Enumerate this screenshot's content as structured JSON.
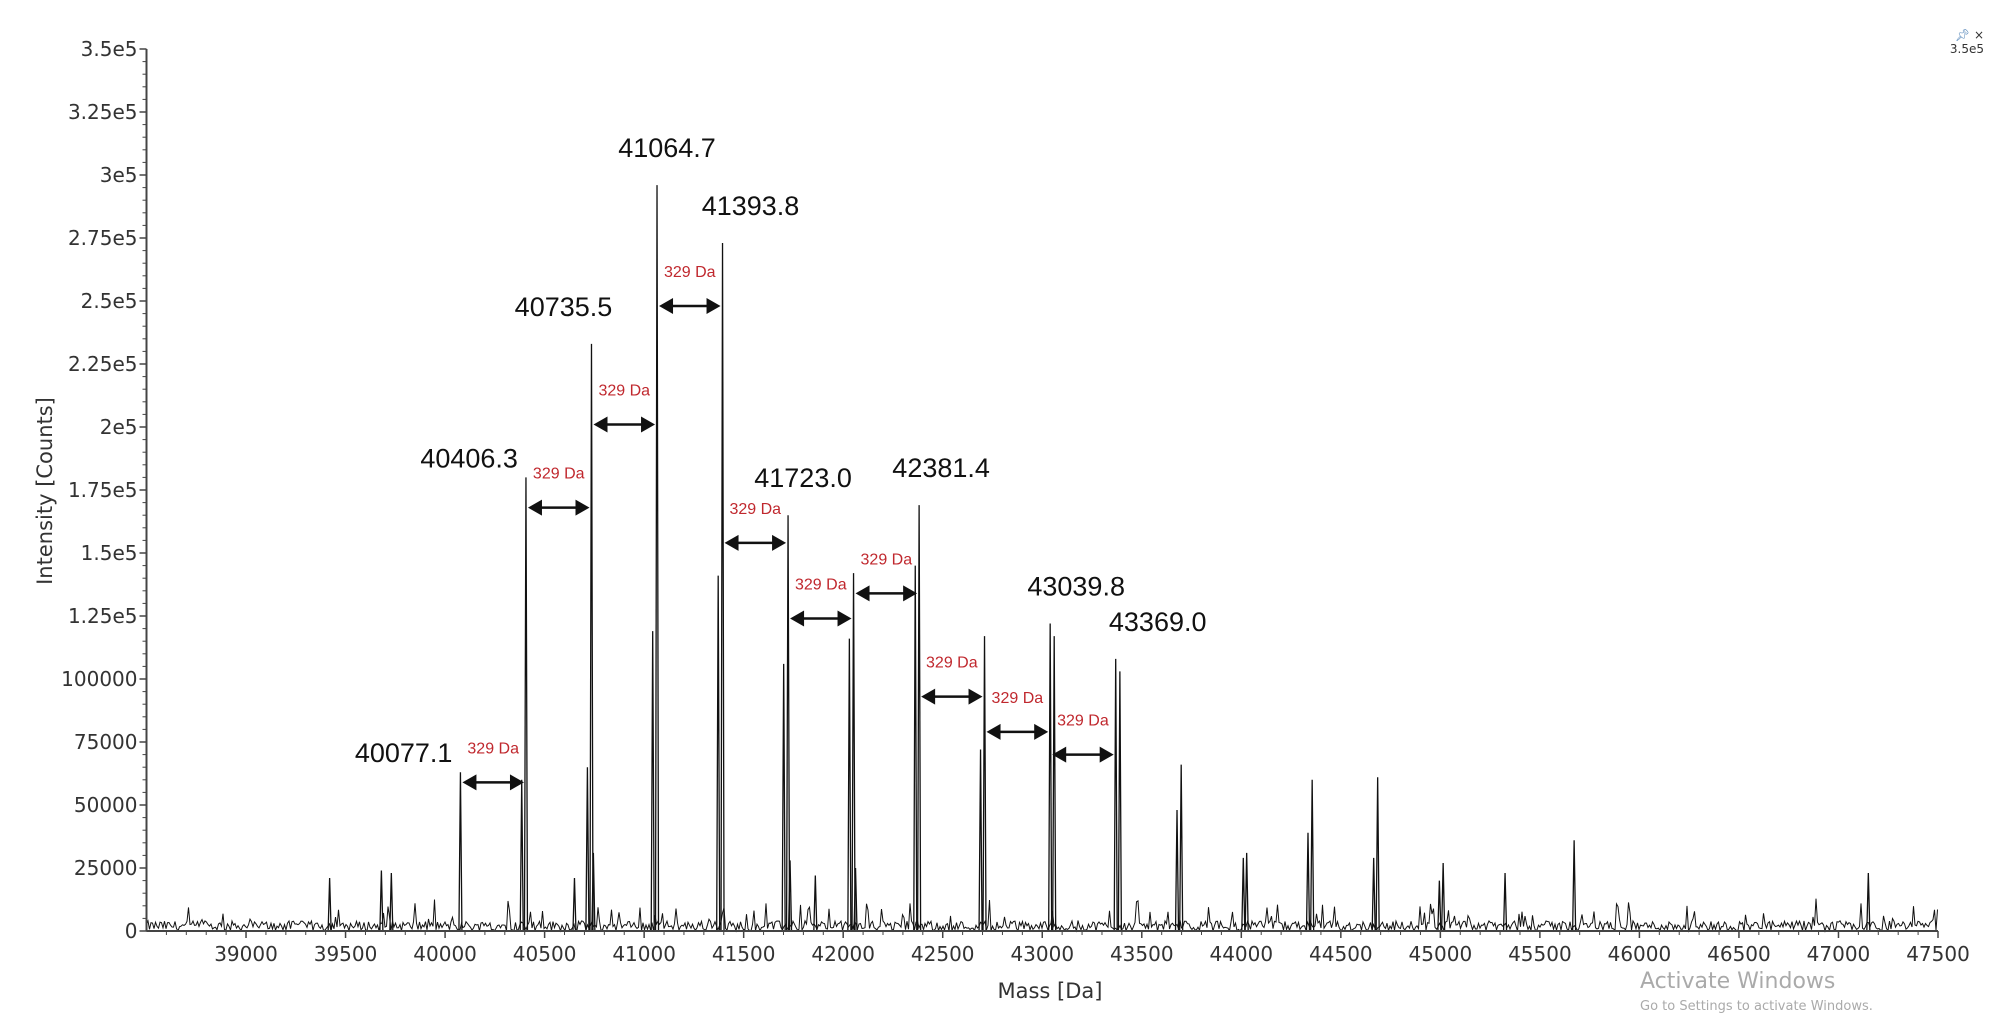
{
  "chart_data": {
    "type": "line",
    "title": "",
    "xlabel": "Mass [Da]",
    "ylabel": "Intensity [Counts]",
    "xlim": [
      38500,
      47500
    ],
    "ylim": [
      0,
      350000
    ],
    "grid": false,
    "x_ticks": [
      "39000",
      "39500",
      "40000",
      "40500",
      "41000",
      "41500",
      "42000",
      "42500",
      "43000",
      "43500",
      "44000",
      "44500",
      "45000",
      "45500",
      "46000",
      "46500",
      "47000",
      "47500"
    ],
    "y_ticks": [
      {
        "value": 0,
        "label": "0"
      },
      {
        "value": 25000,
        "label": "25000"
      },
      {
        "value": 50000,
        "label": "50000"
      },
      {
        "value": 75000,
        "label": "75000"
      },
      {
        "value": 100000,
        "label": "100000"
      },
      {
        "value": 125000,
        "label": "1.25e5"
      },
      {
        "value": 150000,
        "label": "1.5e5"
      },
      {
        "value": 175000,
        "label": "1.75e5"
      },
      {
        "value": 200000,
        "label": "2e5"
      },
      {
        "value": 225000,
        "label": "2.25e5"
      },
      {
        "value": 250000,
        "label": "2.5e5"
      },
      {
        "value": 275000,
        "label": "2.75e5"
      },
      {
        "value": 300000,
        "label": "3e5"
      },
      {
        "value": 325000,
        "label": "3.25e5"
      },
      {
        "value": 350000,
        "label": "3.5e5"
      }
    ],
    "labeled_peaks": [
      {
        "mass": 40077.1,
        "intensity": 63000,
        "label": "40077.1"
      },
      {
        "mass": 40406.3,
        "intensity": 180000,
        "label": "40406.3"
      },
      {
        "mass": 40735.5,
        "intensity": 233000,
        "label": "40735.5"
      },
      {
        "mass": 41064.7,
        "intensity": 296000,
        "label": "41064.7"
      },
      {
        "mass": 41393.8,
        "intensity": 273000,
        "label": "41393.8"
      },
      {
        "mass": 41723.0,
        "intensity": 165000,
        "label": "41723.0"
      },
      {
        "mass": 42381.4,
        "intensity": 169000,
        "label": "42381.4"
      },
      {
        "mass": 43039.8,
        "intensity": 122000,
        "label": "43039.8"
      },
      {
        "mass": 43369.0,
        "intensity": 108000,
        "label": "43369.0"
      }
    ],
    "other_peaks": [
      {
        "mass": 42052,
        "intensity": 142000
      },
      {
        "mass": 42710,
        "intensity": 117000
      },
      {
        "mass": 43698,
        "intensity": 66000
      },
      {
        "mass": 44027,
        "intensity": 31000
      },
      {
        "mass": 44356,
        "intensity": 60000
      },
      {
        "mass": 44685,
        "intensity": 61000
      },
      {
        "mass": 45014,
        "intensity": 27000
      },
      {
        "mass": 45672,
        "intensity": 36000
      },
      {
        "mass": 40385,
        "intensity": 60000
      },
      {
        "mass": 40715,
        "intensity": 65000
      },
      {
        "mass": 40745,
        "intensity": 31000
      },
      {
        "mass": 41043,
        "intensity": 119000
      },
      {
        "mass": 41372,
        "intensity": 141000
      },
      {
        "mass": 41701,
        "intensity": 106000
      },
      {
        "mass": 41733,
        "intensity": 28000
      },
      {
        "mass": 42031,
        "intensity": 116000
      },
      {
        "mass": 42062,
        "intensity": 25000
      },
      {
        "mass": 42362,
        "intensity": 145000
      },
      {
        "mass": 42690,
        "intensity": 72000
      },
      {
        "mass": 43060,
        "intensity": 117000
      },
      {
        "mass": 43390,
        "intensity": 103000
      },
      {
        "mass": 43677,
        "intensity": 48000
      },
      {
        "mass": 44010,
        "intensity": 29000
      },
      {
        "mass": 44335,
        "intensity": 39000
      },
      {
        "mass": 44665,
        "intensity": 29000
      },
      {
        "mass": 44995,
        "intensity": 20000
      },
      {
        "mass": 45325,
        "intensity": 23000
      },
      {
        "mass": 39420,
        "intensity": 21000
      },
      {
        "mass": 39680,
        "intensity": 24000
      },
      {
        "mass": 39730,
        "intensity": 23000
      },
      {
        "mass": 40650,
        "intensity": 21000
      },
      {
        "mass": 41860,
        "intensity": 22000
      },
      {
        "mass": 47150,
        "intensity": 23000
      }
    ],
    "annotations": [
      {
        "from": 40077.1,
        "to": 40406.3,
        "level": 59000,
        "text": "329 Da"
      },
      {
        "from": 40406.3,
        "to": 40735.5,
        "level": 168000,
        "text": "329 Da"
      },
      {
        "from": 40735.5,
        "to": 41064.7,
        "level": 201000,
        "text": "329 Da"
      },
      {
        "from": 41064.7,
        "to": 41393.8,
        "level": 248000,
        "text": "329 Da"
      },
      {
        "from": 41393.8,
        "to": 41723.0,
        "level": 154000,
        "text": "329 Da"
      },
      {
        "from": 41723.0,
        "to": 42052,
        "level": 124000,
        "text": "329 Da"
      },
      {
        "from": 42052,
        "to": 42381.4,
        "level": 134000,
        "text": "329 Da"
      },
      {
        "from": 42381.4,
        "to": 42710,
        "level": 93000,
        "text": "329 Da"
      },
      {
        "from": 42710,
        "to": 43039.8,
        "level": 79000,
        "text": "329 Da"
      },
      {
        "from": 43039.8,
        "to": 43369.0,
        "level": 70000,
        "text": "329 Da"
      }
    ],
    "colors": {
      "trace": "#111111",
      "annotation": "#c0282e",
      "axis": "#444444"
    }
  },
  "corner": {
    "icons": [
      "pin-icon",
      "close-icon"
    ],
    "close_glyph": "×",
    "scale_label": "3.5e5"
  },
  "watermark": {
    "line1": "Activate Windows",
    "line2": "Go to Settings to activate Windows."
  }
}
